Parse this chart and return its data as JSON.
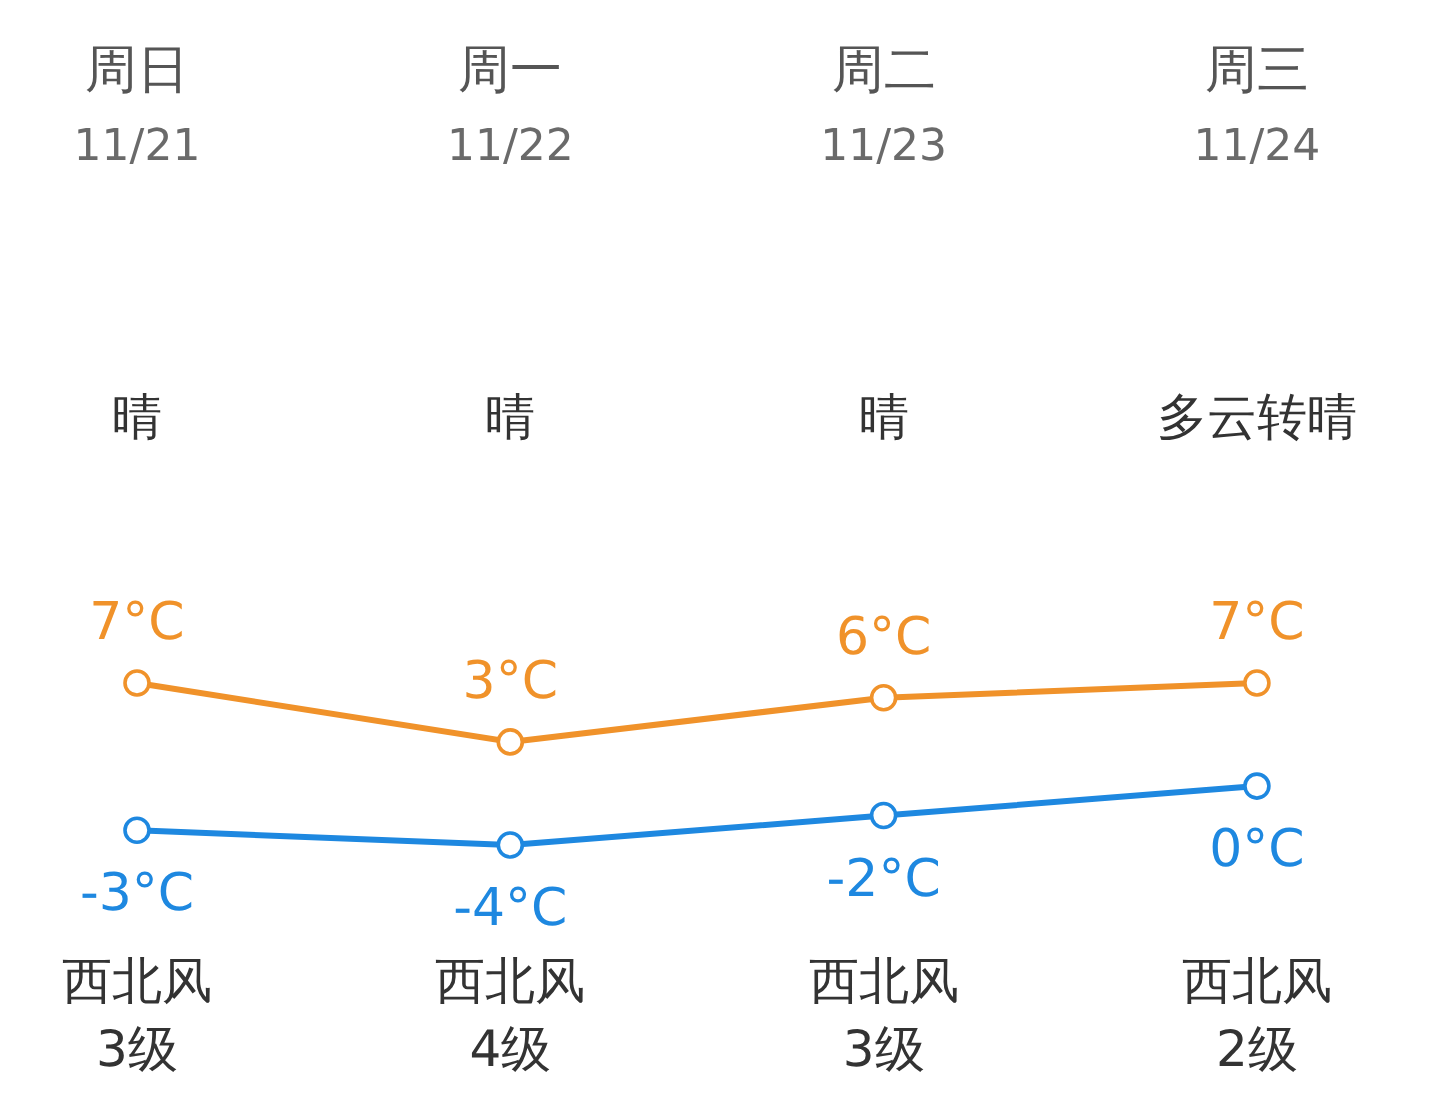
{
  "chart_data": {
    "type": "line",
    "categories": [
      "周日\n11/21",
      "周一\n11/22",
      "周二\n11/23",
      "周三\n11/24"
    ],
    "series": [
      {
        "color": "#f0922a",
        "values": [
          7,
          3,
          6,
          7
        ],
        "value_labels": [
          "7°C",
          "3°C",
          "6°C",
          "7°C"
        ]
      },
      {
        "color": "#1e88e0",
        "values": [
          -3,
          -4,
          -2,
          0
        ],
        "value_labels": [
          "-3°C",
          "-4°C",
          "-2°C",
          "0°C"
        ]
      }
    ],
    "marker": "circle",
    "annotations": [
      "晴",
      "晴",
      "晴",
      "多云转晴",
      "西北风\n3级",
      "西北风\n4级",
      "西北风\n3级",
      "西北风\n2级"
    ]
  }
}
